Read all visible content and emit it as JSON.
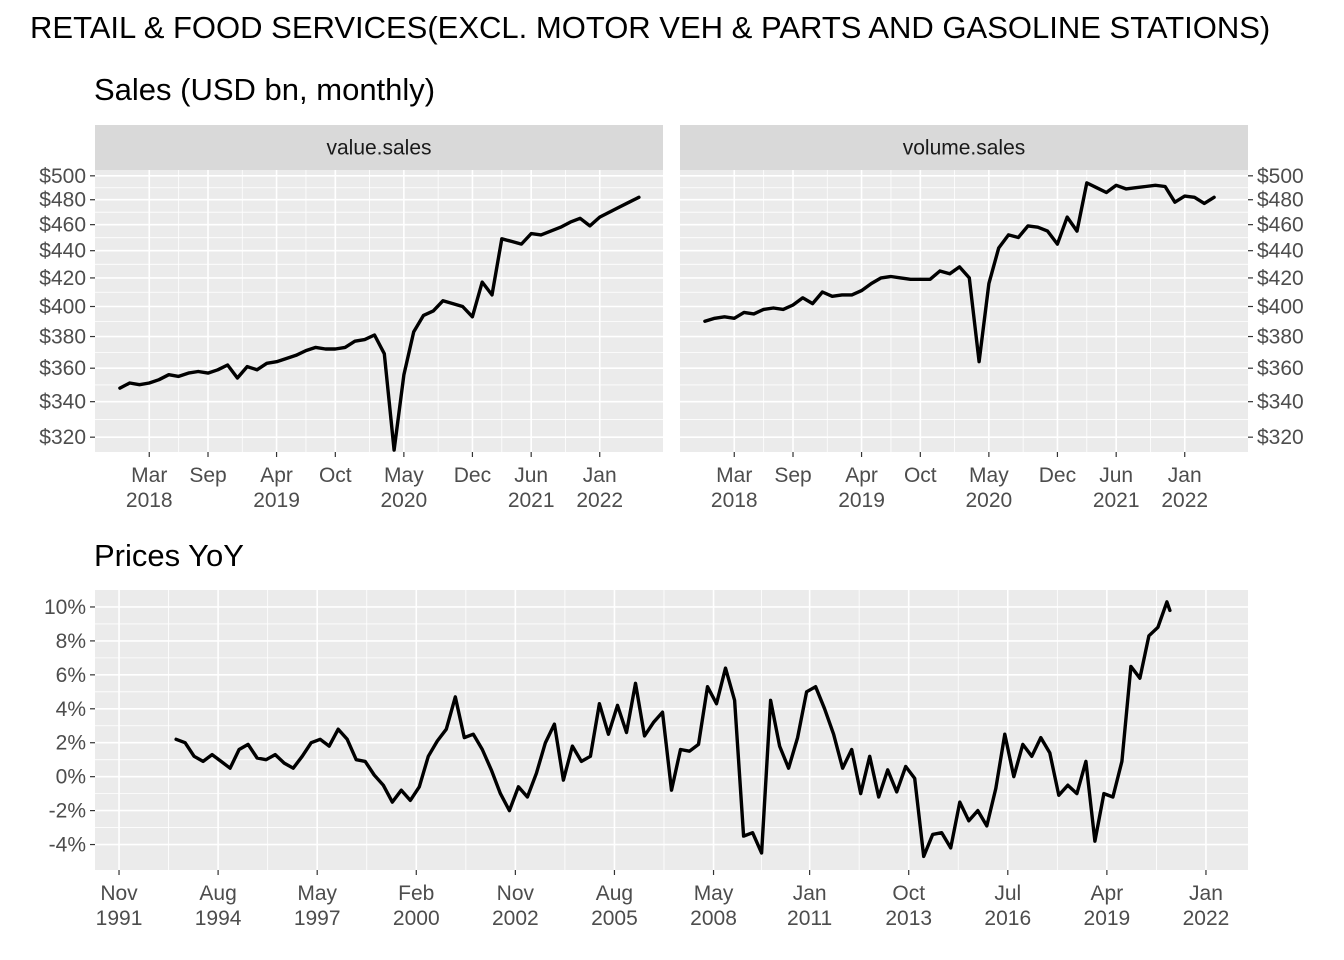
{
  "figure": {
    "title": "RETAIL & FOOD SERVICES(EXCL. MOTOR VEH & PARTS AND GASOLINE STATIONS)"
  },
  "chart_data": [
    {
      "type": "line",
      "title": "Sales (USD bn, monthly)",
      "facet": "value.sales",
      "x_ticks": [
        {
          "date": "2018-03",
          "label": [
            "Mar",
            "2018"
          ]
        },
        {
          "date": "2018-09",
          "label": [
            "Sep",
            ""
          ]
        },
        {
          "date": "2019-04",
          "label": [
            "Apr",
            "2019"
          ]
        },
        {
          "date": "2019-10",
          "label": [
            "Oct",
            ""
          ]
        },
        {
          "date": "2020-05",
          "label": [
            "May",
            "2020"
          ]
        },
        {
          "date": "2020-12",
          "label": [
            "Dec",
            ""
          ]
        },
        {
          "date": "2021-06",
          "label": [
            "Jun",
            "2021"
          ]
        },
        {
          "date": "2022-01",
          "label": [
            "Jan",
            "2022"
          ]
        }
      ],
      "y_ticks": [
        320,
        340,
        360,
        380,
        400,
        420,
        440,
        460,
        480,
        500
      ],
      "y_tick_labels": [
        "$320",
        "$340",
        "$360",
        "$380",
        "$400",
        "$420",
        "$440",
        "$460",
        "$480",
        "$500"
      ],
      "y_scale": "log",
      "ylim": [
        312,
        505
      ],
      "xlim": [
        "2017-09-15",
        "2022-07-15"
      ],
      "points": [
        [
          "2017-12",
          348
        ],
        [
          "2018-01",
          351
        ],
        [
          "2018-02",
          350
        ],
        [
          "2018-03",
          351
        ],
        [
          "2018-04",
          353
        ],
        [
          "2018-05",
          356
        ],
        [
          "2018-06",
          355
        ],
        [
          "2018-07",
          357
        ],
        [
          "2018-08",
          358
        ],
        [
          "2018-09",
          357
        ],
        [
          "2018-10",
          359
        ],
        [
          "2018-11",
          362
        ],
        [
          "2018-12",
          354
        ],
        [
          "2019-01",
          361
        ],
        [
          "2019-02",
          359
        ],
        [
          "2019-03",
          363
        ],
        [
          "2019-04",
          364
        ],
        [
          "2019-05",
          366
        ],
        [
          "2019-06",
          368
        ],
        [
          "2019-07",
          371
        ],
        [
          "2019-08",
          373
        ],
        [
          "2019-09",
          372
        ],
        [
          "2019-10",
          372
        ],
        [
          "2019-11",
          373
        ],
        [
          "2019-12",
          377
        ],
        [
          "2020-01",
          378
        ],
        [
          "2020-02",
          381
        ],
        [
          "2020-03",
          369
        ],
        [
          "2020-04",
          313
        ],
        [
          "2020-05",
          356
        ],
        [
          "2020-06",
          383
        ],
        [
          "2020-07",
          394
        ],
        [
          "2020-08",
          397
        ],
        [
          "2020-09",
          404
        ],
        [
          "2020-10",
          402
        ],
        [
          "2020-11",
          400
        ],
        [
          "2020-12",
          393
        ],
        [
          "2021-01",
          417
        ],
        [
          "2021-02",
          408
        ],
        [
          "2021-03",
          449
        ],
        [
          "2021-04",
          447
        ],
        [
          "2021-05",
          445
        ],
        [
          "2021-06",
          453
        ],
        [
          "2021-07",
          452
        ],
        [
          "2021-08",
          455
        ],
        [
          "2021-09",
          458
        ],
        [
          "2021-10",
          462
        ],
        [
          "2021-11",
          465
        ],
        [
          "2021-12",
          459
        ],
        [
          "2022-01",
          466
        ],
        [
          "2022-02",
          470
        ],
        [
          "2022-03",
          474
        ],
        [
          "2022-04",
          478
        ],
        [
          "2022-05",
          482
        ]
      ]
    },
    {
      "type": "line",
      "title": "Sales (USD bn, monthly)",
      "facet": "volume.sales",
      "x_ticks": [
        {
          "date": "2018-03",
          "label": [
            "Mar",
            "2018"
          ]
        },
        {
          "date": "2018-09",
          "label": [
            "Sep",
            ""
          ]
        },
        {
          "date": "2019-04",
          "label": [
            "Apr",
            "2019"
          ]
        },
        {
          "date": "2019-10",
          "label": [
            "Oct",
            ""
          ]
        },
        {
          "date": "2020-05",
          "label": [
            "May",
            "2020"
          ]
        },
        {
          "date": "2020-12",
          "label": [
            "Dec",
            ""
          ]
        },
        {
          "date": "2021-06",
          "label": [
            "Jun",
            "2021"
          ]
        },
        {
          "date": "2022-01",
          "label": [
            "Jan",
            "2022"
          ]
        }
      ],
      "y_ticks": [
        320,
        340,
        360,
        380,
        400,
        420,
        440,
        460,
        480,
        500
      ],
      "y_tick_labels": [
        "$320",
        "$340",
        "$360",
        "$380",
        "$400",
        "$420",
        "$440",
        "$460",
        "$480",
        "$500"
      ],
      "y_scale": "log",
      "ylim": [
        312,
        505
      ],
      "xlim": [
        "2017-09-15",
        "2022-07-15"
      ],
      "points": [
        [
          "2017-12",
          390
        ],
        [
          "2018-01",
          392
        ],
        [
          "2018-02",
          393
        ],
        [
          "2018-03",
          392
        ],
        [
          "2018-04",
          396
        ],
        [
          "2018-05",
          395
        ],
        [
          "2018-06",
          398
        ],
        [
          "2018-07",
          399
        ],
        [
          "2018-08",
          398
        ],
        [
          "2018-09",
          401
        ],
        [
          "2018-10",
          406
        ],
        [
          "2018-11",
          402
        ],
        [
          "2018-12",
          410
        ],
        [
          "2019-01",
          407
        ],
        [
          "2019-02",
          408
        ],
        [
          "2019-03",
          408
        ],
        [
          "2019-04",
          411
        ],
        [
          "2019-05",
          416
        ],
        [
          "2019-06",
          420
        ],
        [
          "2019-07",
          421
        ],
        [
          "2019-08",
          420
        ],
        [
          "2019-09",
          419
        ],
        [
          "2019-10",
          419
        ],
        [
          "2019-11",
          419
        ],
        [
          "2019-12",
          425
        ],
        [
          "2020-01",
          423
        ],
        [
          "2020-02",
          428
        ],
        [
          "2020-03",
          420
        ],
        [
          "2020-04",
          364
        ],
        [
          "2020-05",
          416
        ],
        [
          "2020-06",
          442
        ],
        [
          "2020-07",
          452
        ],
        [
          "2020-08",
          450
        ],
        [
          "2020-09",
          459
        ],
        [
          "2020-10",
          458
        ],
        [
          "2020-11",
          455
        ],
        [
          "2020-12",
          445
        ],
        [
          "2021-01",
          466
        ],
        [
          "2021-02",
          455
        ],
        [
          "2021-03",
          494
        ],
        [
          "2021-04",
          490
        ],
        [
          "2021-05",
          486
        ],
        [
          "2021-06",
          492
        ],
        [
          "2021-07",
          489
        ],
        [
          "2021-08",
          490
        ],
        [
          "2021-09",
          491
        ],
        [
          "2021-10",
          492
        ],
        [
          "2021-11",
          491
        ],
        [
          "2021-12",
          478
        ],
        [
          "2022-01",
          483
        ],
        [
          "2022-02",
          482
        ],
        [
          "2022-03",
          477
        ],
        [
          "2022-04",
          482
        ]
      ]
    },
    {
      "type": "line",
      "title": "Prices YoY",
      "x_ticks": [
        {
          "date": "1991-11",
          "label": [
            "Nov",
            "1991"
          ]
        },
        {
          "date": "1994-08",
          "label": [
            "Aug",
            "1994"
          ]
        },
        {
          "date": "1997-05",
          "label": [
            "May",
            "1997"
          ]
        },
        {
          "date": "2000-02",
          "label": [
            "Feb",
            "2000"
          ]
        },
        {
          "date": "2002-11",
          "label": [
            "Nov",
            "2002"
          ]
        },
        {
          "date": "2005-08",
          "label": [
            "Aug",
            "2005"
          ]
        },
        {
          "date": "2008-05",
          "label": [
            "May",
            "2008"
          ]
        },
        {
          "date": "2011-01",
          "label": [
            "Jan",
            "2011"
          ]
        },
        {
          "date": "2013-10",
          "label": [
            "Oct",
            "2013"
          ]
        },
        {
          "date": "2016-07",
          "label": [
            "Jul",
            "2016"
          ]
        },
        {
          "date": "2019-04",
          "label": [
            "Apr",
            "2019"
          ]
        },
        {
          "date": "2022-01",
          "label": [
            "Jan",
            "2022"
          ]
        }
      ],
      "y_ticks": [
        -4,
        -2,
        0,
        2,
        4,
        6,
        8,
        10
      ],
      "y_tick_labels": [
        "-4%",
        "-2%",
        "0%",
        "2%",
        "4%",
        "6%",
        "8%",
        "10%"
      ],
      "ylim": [
        -5.5,
        11
      ],
      "xlim": [
        "1991-03",
        "2023-03"
      ],
      "points": [
        [
          "1993-06",
          2.2
        ],
        [
          "1993-09",
          2.0
        ],
        [
          "1993-12",
          1.2
        ],
        [
          "1994-03",
          0.9
        ],
        [
          "1994-06",
          1.3
        ],
        [
          "1994-09",
          0.9
        ],
        [
          "1994-12",
          0.5
        ],
        [
          "1995-03",
          1.6
        ],
        [
          "1995-06",
          1.9
        ],
        [
          "1995-09",
          1.1
        ],
        [
          "1995-12",
          1.0
        ],
        [
          "1996-03",
          1.3
        ],
        [
          "1996-06",
          0.8
        ],
        [
          "1996-09",
          0.5
        ],
        [
          "1996-12",
          1.2
        ],
        [
          "1997-03",
          2.0
        ],
        [
          "1997-06",
          2.2
        ],
        [
          "1997-09",
          1.8
        ],
        [
          "1997-12",
          2.8
        ],
        [
          "1998-03",
          2.2
        ],
        [
          "1998-06",
          1.0
        ],
        [
          "1998-09",
          0.9
        ],
        [
          "1998-12",
          0.1
        ],
        [
          "1999-03",
          -0.5
        ],
        [
          "1999-06",
          -1.5
        ],
        [
          "1999-09",
          -0.8
        ],
        [
          "1999-12",
          -1.4
        ],
        [
          "2000-03",
          -0.6
        ],
        [
          "2000-06",
          1.2
        ],
        [
          "2000-09",
          2.1
        ],
        [
          "2000-12",
          2.8
        ],
        [
          "2001-03",
          4.7
        ],
        [
          "2001-06",
          2.3
        ],
        [
          "2001-09",
          2.5
        ],
        [
          "2001-12",
          1.6
        ],
        [
          "2002-03",
          0.4
        ],
        [
          "2002-06",
          -1.0
        ],
        [
          "2002-09",
          -2.0
        ],
        [
          "2002-12",
          -0.6
        ],
        [
          "2003-03",
          -1.2
        ],
        [
          "2003-06",
          0.2
        ],
        [
          "2003-09",
          2.0
        ],
        [
          "2003-12",
          3.1
        ],
        [
          "2004-03",
          -0.2
        ],
        [
          "2004-06",
          1.8
        ],
        [
          "2004-09",
          0.9
        ],
        [
          "2004-12",
          1.2
        ],
        [
          "2005-03",
          4.3
        ],
        [
          "2005-06",
          2.5
        ],
        [
          "2005-09",
          4.2
        ],
        [
          "2005-12",
          2.6
        ],
        [
          "2006-03",
          5.5
        ],
        [
          "2006-06",
          2.4
        ],
        [
          "2006-09",
          3.2
        ],
        [
          "2006-12",
          3.8
        ],
        [
          "2007-03",
          -0.8
        ],
        [
          "2007-06",
          1.6
        ],
        [
          "2007-09",
          1.5
        ],
        [
          "2007-12",
          1.9
        ],
        [
          "2008-03",
          5.3
        ],
        [
          "2008-06",
          4.3
        ],
        [
          "2008-09",
          6.4
        ],
        [
          "2008-12",
          4.5
        ],
        [
          "2009-03",
          -3.5
        ],
        [
          "2009-06",
          -3.3
        ],
        [
          "2009-09",
          -4.5
        ],
        [
          "2009-12",
          4.5
        ],
        [
          "2010-03",
          1.8
        ],
        [
          "2010-06",
          0.5
        ],
        [
          "2010-09",
          2.3
        ],
        [
          "2010-12",
          5.0
        ],
        [
          "2011-03",
          5.3
        ],
        [
          "2011-06",
          4.0
        ],
        [
          "2011-09",
          2.5
        ],
        [
          "2011-12",
          0.5
        ],
        [
          "2012-03",
          1.6
        ],
        [
          "2012-06",
          -1.0
        ],
        [
          "2012-09",
          1.2
        ],
        [
          "2012-12",
          -1.2
        ],
        [
          "2013-03",
          0.4
        ],
        [
          "2013-06",
          -0.9
        ],
        [
          "2013-09",
          0.6
        ],
        [
          "2013-12",
          -0.1
        ],
        [
          "2014-03",
          -4.7
        ],
        [
          "2014-06",
          -3.4
        ],
        [
          "2014-09",
          -3.3
        ],
        [
          "2014-12",
          -4.2
        ],
        [
          "2015-03",
          -1.5
        ],
        [
          "2015-06",
          -2.6
        ],
        [
          "2015-09",
          -2.0
        ],
        [
          "2015-12",
          -2.9
        ],
        [
          "2016-03",
          -0.7
        ],
        [
          "2016-06",
          2.5
        ],
        [
          "2016-09",
          0.0
        ],
        [
          "2016-12",
          1.9
        ],
        [
          "2017-03",
          1.2
        ],
        [
          "2017-06",
          2.3
        ],
        [
          "2017-09",
          1.4
        ],
        [
          "2017-12",
          -1.1
        ],
        [
          "2018-03",
          -0.5
        ],
        [
          "2018-06",
          -1.0
        ],
        [
          "2018-09",
          0.9
        ],
        [
          "2018-12",
          -3.8
        ],
        [
          "2019-03",
          -1.0
        ],
        [
          "2019-06",
          -1.2
        ],
        [
          "2019-09",
          0.9
        ],
        [
          "2019-12",
          6.5
        ],
        [
          "2020-03",
          5.8
        ],
        [
          "2020-06",
          8.3
        ],
        [
          "2020-09",
          8.8
        ],
        [
          "2020-12",
          10.3
        ],
        [
          "2021-01",
          9.8
        ]
      ]
    }
  ]
}
